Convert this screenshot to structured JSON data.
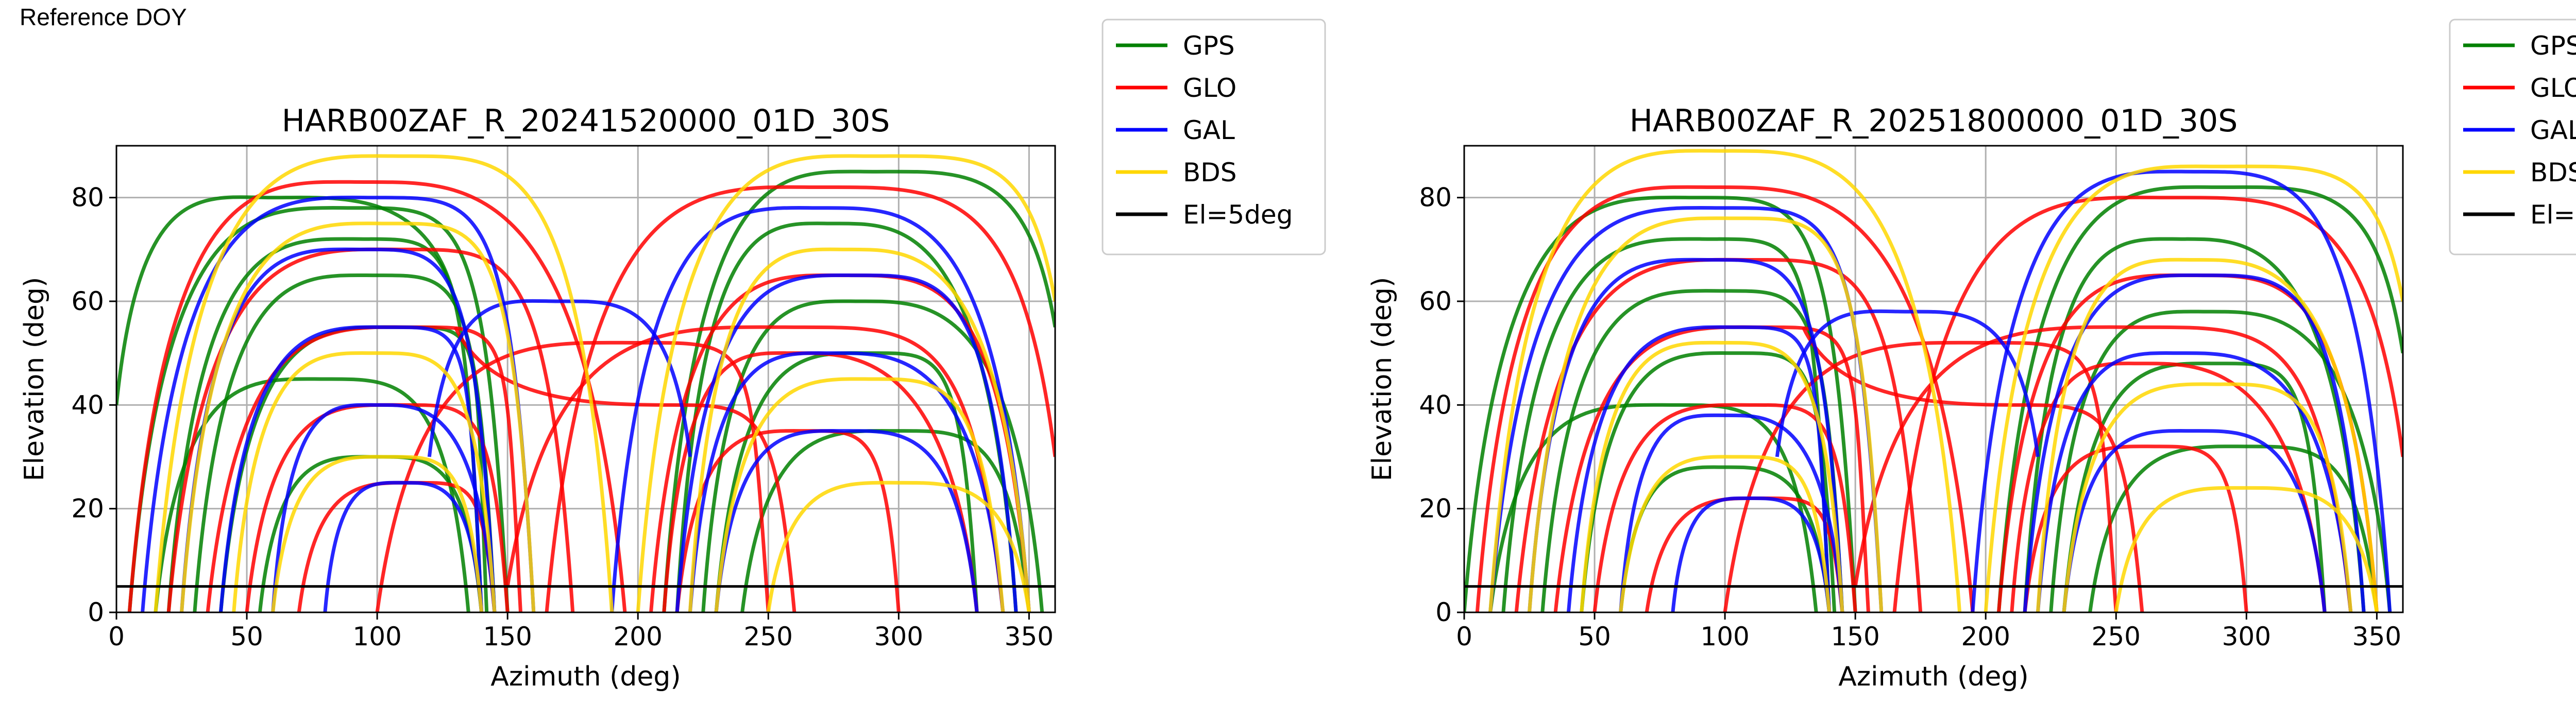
{
  "figure": {
    "label": "Reference DOY"
  },
  "legend_entries": [
    {
      "name": "GPS",
      "color": "#008000"
    },
    {
      "name": "GLO",
      "color": "#ff0000"
    },
    {
      "name": "GAL",
      "color": "#0000ff"
    },
    {
      "name": "BDS",
      "color": "#ffd700"
    },
    {
      "name": "El=5deg",
      "color": "#000000"
    }
  ],
  "chart_data": [
    {
      "type": "line",
      "title": "HARB00ZAF_R_20241520000_01D_30S",
      "xlabel": "Azimuth (deg)",
      "ylabel": "Elevation (deg)",
      "xlim": [
        0,
        360
      ],
      "ylim": [
        0,
        90
      ],
      "xticks": [
        0,
        50,
        100,
        150,
        200,
        250,
        300,
        350
      ],
      "yticks": [
        0,
        20,
        40,
        60,
        80
      ],
      "grid": true,
      "legend_position": "outside-right-top",
      "reference_line": {
        "name": "El=5deg",
        "y": 5
      },
      "series": [
        {
          "name": "GPS",
          "color": "#008000",
          "arcs": [
            [
              5,
              0,
              92,
              78,
              150,
              0
            ],
            [
              20,
              0,
              95,
              72,
              140,
              0
            ],
            [
              30,
              0,
              100,
              65,
              145,
              0
            ],
            [
              40,
              0,
              110,
              55,
              142,
              0
            ],
            [
              15,
              0,
              80,
              45,
              135,
              0
            ],
            [
              55,
              0,
              100,
              30,
              140,
              0
            ],
            [
              210,
              0,
              290,
              85,
              360,
              55
            ],
            [
              215,
              0,
              275,
              75,
              345,
              0
            ],
            [
              225,
              0,
              285,
              60,
              355,
              0
            ],
            [
              230,
              0,
              290,
              50,
              330,
              0
            ],
            [
              240,
              0,
              300,
              35,
              350,
              0
            ],
            [
              0,
              40,
              60,
              80,
              130,
              60
            ]
          ]
        },
        {
          "name": "GLO",
          "color": "#ff0000",
          "arcs": [
            [
              5,
              0,
              95,
              83,
              195,
              0
            ],
            [
              20,
              0,
              110,
              70,
              175,
              0
            ],
            [
              35,
              0,
              115,
              55,
              155,
              0
            ],
            [
              50,
              0,
              110,
              40,
              150,
              0
            ],
            [
              70,
              0,
              115,
              25,
              145,
              0
            ],
            [
              165,
              0,
              270,
              82,
              360,
              30
            ],
            [
              205,
              0,
              280,
              65,
              350,
              0
            ],
            [
              210,
              0,
              260,
              50,
              330,
              0
            ],
            [
              215,
              0,
              265,
              35,
              300,
              0
            ],
            [
              130,
              55,
              210,
              40,
              260,
              0
            ],
            [
              150,
              5,
              260,
              55,
              340,
              0
            ],
            [
              100,
              0,
              200,
              52,
              250,
              0
            ]
          ]
        },
        {
          "name": "GAL",
          "color": "#0000ff",
          "arcs": [
            [
              10,
              0,
              100,
              80,
              160,
              0
            ],
            [
              25,
              0,
              95,
              70,
              145,
              0
            ],
            [
              40,
              0,
              105,
              55,
              140,
              0
            ],
            [
              60,
              0,
              100,
              40,
              145,
              0
            ],
            [
              80,
              0,
              110,
              25,
              140,
              0
            ],
            [
              190,
              0,
              270,
              78,
              350,
              0
            ],
            [
              215,
              0,
              285,
              65,
              345,
              0
            ],
            [
              220,
              0,
              275,
              50,
              340,
              0
            ],
            [
              230,
              0,
              280,
              35,
              330,
              0
            ],
            [
              120,
              30,
              170,
              60,
              220,
              30
            ]
          ]
        },
        {
          "name": "BDS",
          "color": "#ffd700",
          "arcs": [
            [
              15,
              0,
              110,
              88,
              190,
              0
            ],
            [
              25,
              0,
              105,
              75,
              160,
              0
            ],
            [
              45,
              0,
              100,
              50,
              145,
              0
            ],
            [
              60,
              0,
              105,
              30,
              140,
              0
            ],
            [
              200,
              0,
              290,
              88,
              360,
              60
            ],
            [
              220,
              0,
              280,
              70,
              350,
              0
            ],
            [
              230,
              0,
              290,
              45,
              340,
              0
            ],
            [
              250,
              0,
              300,
              25,
              350,
              0
            ]
          ]
        }
      ]
    },
    {
      "type": "line",
      "title": "HARB00ZAF_R_20251800000_01D_30S",
      "xlabel": "Azimuth (deg)",
      "ylabel": "Elevation (deg)",
      "xlim": [
        0,
        360
      ],
      "ylim": [
        0,
        90
      ],
      "xticks": [
        0,
        50,
        100,
        150,
        200,
        250,
        300,
        350
      ],
      "yticks": [
        0,
        20,
        40,
        60,
        80
      ],
      "grid": true,
      "legend_position": "outside-right-top",
      "reference_line": {
        "name": "El=5deg",
        "y": 5
      },
      "series": [
        {
          "name": "GPS",
          "color": "#008000",
          "arcs": [
            [
              0,
              0,
              90,
              80,
              150,
              0
            ],
            [
              15,
              0,
              95,
              72,
              140,
              0
            ],
            [
              30,
              0,
              100,
              62,
              145,
              0
            ],
            [
              45,
              0,
              105,
              50,
              142,
              0
            ],
            [
              10,
              0,
              80,
              40,
              135,
              0
            ],
            [
              60,
              0,
              100,
              28,
              140,
              0
            ],
            [
              205,
              0,
              290,
              82,
              360,
              50
            ],
            [
              215,
              0,
              275,
              72,
              345,
              0
            ],
            [
              225,
              0,
              285,
              58,
              355,
              0
            ],
            [
              230,
              0,
              290,
              48,
              330,
              0
            ],
            [
              240,
              0,
              300,
              32,
              350,
              0
            ]
          ]
        },
        {
          "name": "GLO",
          "color": "#ff0000",
          "arcs": [
            [
              5,
              0,
              95,
              82,
              195,
              0
            ],
            [
              20,
              0,
              110,
              68,
              175,
              0
            ],
            [
              35,
              0,
              115,
              55,
              155,
              0
            ],
            [
              50,
              0,
              110,
              40,
              150,
              0
            ],
            [
              70,
              0,
              115,
              22,
              145,
              0
            ],
            [
              165,
              0,
              270,
              80,
              360,
              30
            ],
            [
              205,
              0,
              280,
              65,
              350,
              0
            ],
            [
              210,
              0,
              260,
              48,
              330,
              0
            ],
            [
              215,
              0,
              265,
              32,
              300,
              0
            ],
            [
              130,
              55,
              210,
              40,
              260,
              0
            ],
            [
              150,
              5,
              260,
              55,
              340,
              0
            ],
            [
              100,
              0,
              200,
              52,
              250,
              0
            ]
          ]
        },
        {
          "name": "GAL",
          "color": "#0000ff",
          "arcs": [
            [
              10,
              0,
              100,
              78,
              160,
              0
            ],
            [
              25,
              0,
              95,
              68,
              145,
              0
            ],
            [
              40,
              0,
              105,
              55,
              140,
              0
            ],
            [
              60,
              0,
              100,
              38,
              145,
              0
            ],
            [
              80,
              0,
              110,
              22,
              140,
              0
            ],
            [
              195,
              0,
              280,
              85,
              355,
              0
            ],
            [
              215,
              0,
              285,
              65,
              345,
              0
            ],
            [
              220,
              0,
              275,
              50,
              340,
              0
            ],
            [
              230,
              0,
              280,
              35,
              330,
              0
            ],
            [
              120,
              30,
              170,
              58,
              220,
              30
            ]
          ]
        },
        {
          "name": "BDS",
          "color": "#ffd700",
          "arcs": [
            [
              10,
              0,
              100,
              89,
              190,
              0
            ],
            [
              25,
              0,
              105,
              76,
              160,
              0
            ],
            [
              45,
              0,
              100,
              52,
              145,
              0
            ],
            [
              60,
              0,
              105,
              30,
              140,
              0
            ],
            [
              200,
              0,
              290,
              86,
              360,
              60
            ],
            [
              220,
              0,
              280,
              68,
              350,
              0
            ],
            [
              230,
              0,
              290,
              44,
              340,
              0
            ],
            [
              250,
              0,
              300,
              24,
              350,
              0
            ]
          ]
        }
      ]
    }
  ]
}
